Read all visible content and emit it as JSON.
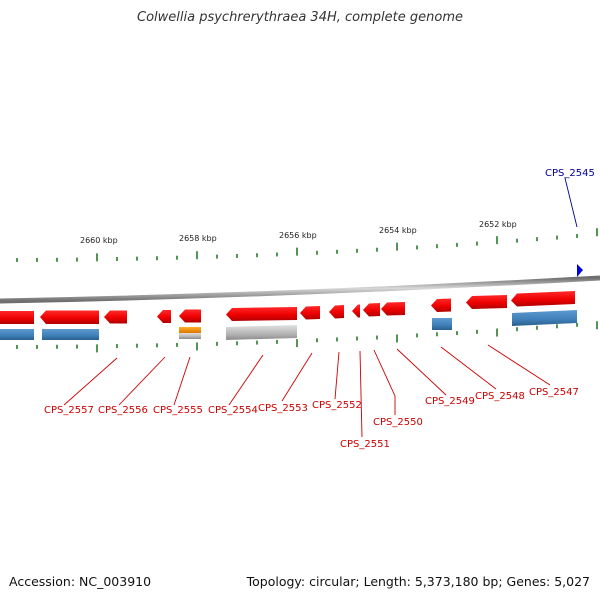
{
  "title": "Colwellia psychrerythraea 34H, complete genome",
  "accession_text": "Accession: NC_003910",
  "info_text": "Topology: circular; Length: 5,373,180 bp; Genes: 5,027",
  "colors": {
    "backbone": "#8f8f8f",
    "forward_gene": "#0000dd",
    "reverse_gene": "#ee0000",
    "reverse_label": "#cc0000",
    "forward_label": "#00009a",
    "protein_feature": "#3f7fb7",
    "orange_feature": "#ee8800",
    "gray_feature": "#b4b4b4",
    "tick": "#2a7a2a",
    "kbp_text": "#222222"
  },
  "kbp_labels": [
    "2660 kbp",
    "2658 kbp",
    "2656 kbp",
    "2654 kbp",
    "2652 kbp"
  ],
  "genes": [
    {
      "id": "CPS_2557",
      "strand": "reverse"
    },
    {
      "id": "CPS_2556",
      "strand": "reverse"
    },
    {
      "id": "CPS_2555",
      "strand": "reverse"
    },
    {
      "id": "CPS_2554",
      "strand": "reverse"
    },
    {
      "id": "CPS_2553",
      "strand": "reverse"
    },
    {
      "id": "CPS_2552",
      "strand": "reverse"
    },
    {
      "id": "CPS_2551",
      "strand": "reverse"
    },
    {
      "id": "CPS_2550",
      "strand": "reverse"
    },
    {
      "id": "CPS_2549",
      "strand": "reverse"
    },
    {
      "id": "CPS_2548",
      "strand": "reverse"
    },
    {
      "id": "CPS_2547",
      "strand": "reverse"
    },
    {
      "id": "CPS_2545",
      "strand": "forward"
    }
  ]
}
